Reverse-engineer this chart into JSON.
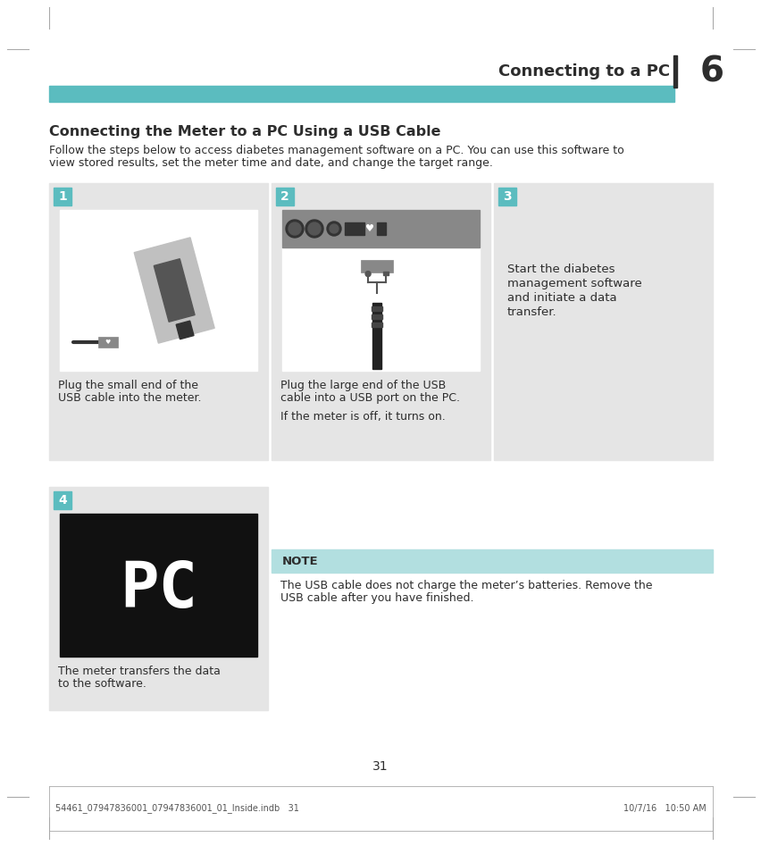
{
  "page_bg": "#ffffff",
  "teal_color": "#5bbcbf",
  "teal_light": "#b2dfe0",
  "dark_color": "#2d2d2d",
  "gray_bg": "#e5e5e5",
  "header_title": "Connecting to a PC",
  "chapter_num": "6",
  "section_title": "Connecting the Meter to a PC Using a USB Cable",
  "intro_line1": "Follow the steps below to access diabetes management software on a PC. You can use this software to",
  "intro_line2": "view stored results, set the meter time and date, and change the target range.",
  "step1_num": "1",
  "step1_caption_line1": "Plug the small end of the",
  "step1_caption_line2": "USB cable into the meter.",
  "step2_num": "2",
  "step2_caption_line1": "Plug the large end of the USB",
  "step2_caption_line2": "cable into a USB port on the PC.",
  "step2_caption_line3": "",
  "step2_caption_line4": "If the meter is off, it turns on.",
  "step3_num": "3",
  "step3_caption_line1": "Start the diabetes",
  "step3_caption_line2": "management software",
  "step3_caption_line3": "and initiate a data",
  "step3_caption_line4": "transfer.",
  "step4_num": "4",
  "step4_caption_line1": "The meter transfers the data",
  "step4_caption_line2": "to the software.",
  "note_label": "NOTE",
  "note_line1": "The USB cable does not charge the meter’s batteries. Remove the",
  "note_line2": "USB cable after you have finished.",
  "page_num": "31",
  "footer_left": "54461_07947836001_07947836001_01_Inside.indb   31",
  "footer_right": "10/7/16   10:50 AM",
  "mark_color": "#aaaaaa",
  "sep_bar_color": "#2d2d2d"
}
